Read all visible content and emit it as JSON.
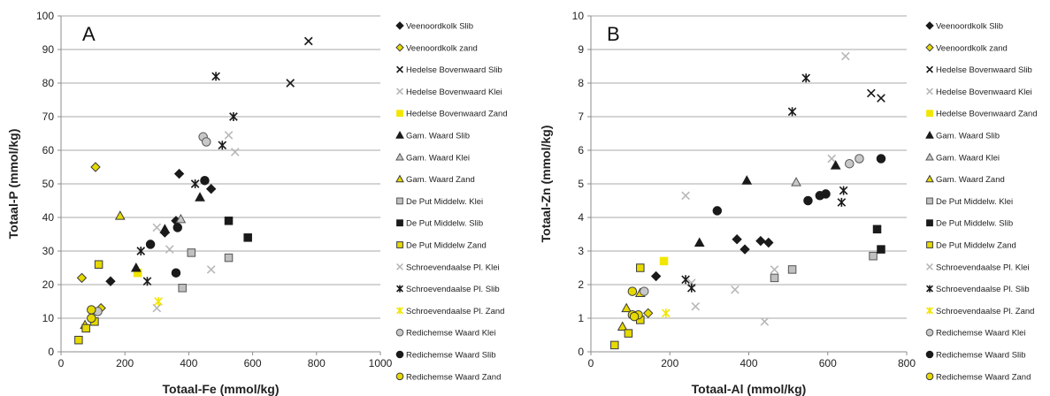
{
  "chart_data": [
    {
      "type": "scatter",
      "panel_letter": "A",
      "xlabel": "Totaal-Fe (mmol/kg)",
      "ylabel": "Totaal-P (mmol/kg)",
      "xlim": [
        0,
        1000
      ],
      "ylim": [
        0,
        100
      ],
      "xticks": [
        0,
        200,
        400,
        600,
        800,
        1000
      ],
      "yticks": [
        0,
        10,
        20,
        30,
        40,
        50,
        60,
        70,
        80,
        90,
        100
      ],
      "grid": "horizontal",
      "legend": "right",
      "series": [
        {
          "name": "Veenoordkolk Slib",
          "marker": "diamond",
          "fill": "#1a1a1a",
          "stroke": "#1a1a1a",
          "points": [
            [
              155,
              21
            ],
            [
              370,
              53
            ],
            [
              470,
              48.5
            ],
            [
              360,
              39
            ],
            [
              325,
              35.5
            ]
          ]
        },
        {
          "name": "Veenoordkolk zand",
          "marker": "diamond",
          "fill": "#e6d900",
          "stroke": "#3a3a3a",
          "points": [
            [
              108,
              55
            ],
            [
              65,
              22
            ],
            [
              125,
              13
            ]
          ]
        },
        {
          "name": "Hedelse Bovenwaard Slib",
          "marker": "x",
          "fill": "none",
          "stroke": "#1a1a1a",
          "points": [
            [
              775,
              92.5
            ],
            [
              718,
              80
            ]
          ]
        },
        {
          "name": "Hedelse Bovenwaard Klei",
          "marker": "x",
          "fill": "none",
          "stroke": "#b8b8b8",
          "points": [
            [
              300,
              37
            ],
            [
              525,
              64.5
            ],
            [
              545,
              59.5
            ],
            [
              470,
              24.5
            ],
            [
              340,
              30.5
            ]
          ]
        },
        {
          "name": "Hedelse Bovenwaard Zand",
          "marker": "square",
          "fill": "#f2e600",
          "stroke": "#f2e600",
          "points": [
            [
              240,
              23.5
            ]
          ]
        },
        {
          "name": "Gam. Waard Slib",
          "marker": "triangle",
          "fill": "#1a1a1a",
          "stroke": "#1a1a1a",
          "points": [
            [
              325,
              36.5
            ],
            [
              435,
              46
            ],
            [
              235,
              25
            ]
          ]
        },
        {
          "name": "Gam. Waard Klei",
          "marker": "triangle",
          "fill": "#c8c8c8",
          "stroke": "#555555",
          "points": [
            [
              375,
              39.5
            ]
          ]
        },
        {
          "name": "Gam. Waard Zand",
          "marker": "triangle",
          "fill": "#e6d900",
          "stroke": "#3a3a3a",
          "points": [
            [
              185,
              40.5
            ],
            [
              75,
              8
            ]
          ]
        },
        {
          "name": "De Put Middelw. Klei",
          "marker": "square",
          "fill": "#c0c0c0",
          "stroke": "#555555",
          "points": [
            [
              380,
              19
            ],
            [
              408,
              29.5
            ],
            [
              525,
              28
            ]
          ]
        },
        {
          "name": "De Put Middelw. Slib",
          "marker": "square",
          "fill": "#1a1a1a",
          "stroke": "#1a1a1a",
          "points": [
            [
              525,
              39
            ],
            [
              585,
              34
            ]
          ]
        },
        {
          "name": "De Put Middelw Zand",
          "marker": "square",
          "fill": "#e6d900",
          "stroke": "#3a3a3a",
          "points": [
            [
              55,
              3.5
            ],
            [
              78,
              7
            ],
            [
              105,
              9
            ],
            [
              118,
              26
            ]
          ]
        },
        {
          "name": "Schroevendaalse Pl. Klei",
          "marker": "x",
          "fill": "none",
          "stroke": "#b8b8b8",
          "points": [
            [
              300,
              13
            ]
          ]
        },
        {
          "name": "Schroevendaalse Pl. Slib",
          "marker": "star",
          "fill": "none",
          "stroke": "#1a1a1a",
          "points": [
            [
              485,
              82
            ],
            [
              540,
              70
            ],
            [
              505,
              61.5
            ],
            [
              420,
              50
            ],
            [
              270,
              21
            ],
            [
              250,
              30
            ]
          ]
        },
        {
          "name": "Schroevendaalse Pl. Zand",
          "marker": "star",
          "fill": "none",
          "stroke": "#f2e600",
          "points": [
            [
              305,
              15
            ]
          ]
        },
        {
          "name": "Redichemse Waard Klei",
          "marker": "circle",
          "fill": "#c8c8c8",
          "stroke": "#555555",
          "points": [
            [
              445,
              64
            ],
            [
              455,
              62.5
            ],
            [
              115,
              12
            ]
          ]
        },
        {
          "name": "Redichemse Waard Slib",
          "marker": "circle",
          "fill": "#1a1a1a",
          "stroke": "#1a1a1a",
          "points": [
            [
              450,
              51
            ],
            [
              365,
              37
            ],
            [
              280,
              32
            ],
            [
              360,
              23.5
            ]
          ]
        },
        {
          "name": "Redichemse  Waard  Zand",
          "marker": "circle",
          "fill": "#e6d900",
          "stroke": "#3a3a3a",
          "points": [
            [
              95,
              12.5
            ],
            [
              95,
              10
            ]
          ]
        }
      ]
    },
    {
      "type": "scatter",
      "panel_letter": "B",
      "xlabel": "Totaal-Al (mmol/kg)",
      "ylabel": "Totaal-Zn (mmol/kg)",
      "xlim": [
        0,
        800
      ],
      "ylim": [
        0,
        10
      ],
      "xticks": [
        0,
        200,
        400,
        600,
        800
      ],
      "yticks": [
        0,
        1,
        2,
        3,
        4,
        5,
        6,
        7,
        8,
        9,
        10
      ],
      "grid": "horizontal",
      "legend": "right",
      "series": [
        {
          "name": "Veenoordkolk Slib",
          "marker": "diamond",
          "fill": "#1a1a1a",
          "stroke": "#1a1a1a",
          "points": [
            [
              165,
              2.25
            ],
            [
              370,
              3.35
            ],
            [
              390,
              3.05
            ],
            [
              430,
              3.3
            ],
            [
              450,
              3.25
            ]
          ]
        },
        {
          "name": "Veenoordkolk zand",
          "marker": "diamond",
          "fill": "#e6d900",
          "stroke": "#3a3a3a",
          "points": [
            [
              145,
              1.15
            ]
          ]
        },
        {
          "name": "Hedelse Bovenwaard Slib",
          "marker": "x",
          "fill": "none",
          "stroke": "#1a1a1a",
          "points": [
            [
              710,
              7.7
            ],
            [
              735,
              7.55
            ]
          ]
        },
        {
          "name": "Hedelse Bovenwaard Klei",
          "marker": "x",
          "fill": "none",
          "stroke": "#b8b8b8",
          "points": [
            [
              645,
              8.8
            ],
            [
              240,
              4.65
            ],
            [
              365,
              1.85
            ],
            [
              440,
              0.9
            ],
            [
              610,
              5.75
            ],
            [
              265,
              1.35
            ],
            [
              255,
              2.05
            ],
            [
              465,
              2.45
            ]
          ]
        },
        {
          "name": "Hedelse Bovenwaard Zand",
          "marker": "square",
          "fill": "#f2e600",
          "stroke": "#f2e600",
          "points": [
            [
              185,
              2.7
            ]
          ]
        },
        {
          "name": "Gam. Waard Slib",
          "marker": "triangle",
          "fill": "#1a1a1a",
          "stroke": "#1a1a1a",
          "points": [
            [
              395,
              5.1
            ],
            [
              275,
              3.25
            ],
            [
              620,
              5.55
            ]
          ]
        },
        {
          "name": "Gam. Waard Klei",
          "marker": "triangle",
          "fill": "#c8c8c8",
          "stroke": "#555555",
          "points": [
            [
              520,
              5.05
            ]
          ]
        },
        {
          "name": "Gam. Waard Zand",
          "marker": "triangle",
          "fill": "#e6d900",
          "stroke": "#3a3a3a",
          "points": [
            [
              90,
              1.3
            ],
            [
              125,
              1.75
            ],
            [
              80,
              0.75
            ]
          ]
        },
        {
          "name": "De Put Middelw. Klei",
          "marker": "square",
          "fill": "#c0c0c0",
          "stroke": "#555555",
          "points": [
            [
              465,
              2.2
            ],
            [
              510,
              2.45
            ],
            [
              715,
              2.85
            ]
          ]
        },
        {
          "name": "De Put Middelw. Slib",
          "marker": "square",
          "fill": "#1a1a1a",
          "stroke": "#1a1a1a",
          "points": [
            [
              725,
              3.65
            ],
            [
              735,
              3.05
            ]
          ]
        },
        {
          "name": "De Put Middelw Zand",
          "marker": "square",
          "fill": "#e6d900",
          "stroke": "#3a3a3a",
          "points": [
            [
              125,
              2.5
            ],
            [
              60,
              0.2
            ],
            [
              95,
              0.55
            ],
            [
              125,
              0.95
            ]
          ]
        },
        {
          "name": "Schroevendaalse Pl. Klei",
          "marker": "x",
          "fill": "none",
          "stroke": "#b8b8b8",
          "points": []
        },
        {
          "name": "Schroevendaalse Pl. Slib",
          "marker": "star",
          "fill": "none",
          "stroke": "#1a1a1a",
          "points": [
            [
              545,
              8.15
            ],
            [
              510,
              7.15
            ],
            [
              640,
              4.8
            ],
            [
              635,
              4.45
            ],
            [
              240,
              2.15
            ],
            [
              255,
              1.9
            ]
          ]
        },
        {
          "name": "Schroevendaalse Pl. Zand",
          "marker": "star",
          "fill": "none",
          "stroke": "#f2e600",
          "points": [
            [
              190,
              1.15
            ]
          ]
        },
        {
          "name": "Redichemse Waard Klei",
          "marker": "circle",
          "fill": "#c8c8c8",
          "stroke": "#555555",
          "points": [
            [
              680,
              5.75
            ],
            [
              655,
              5.6
            ],
            [
              135,
              1.8
            ]
          ]
        },
        {
          "name": "Redichemse Waard Slib",
          "marker": "circle",
          "fill": "#1a1a1a",
          "stroke": "#1a1a1a",
          "points": [
            [
              735,
              5.75
            ],
            [
              595,
              4.7
            ],
            [
              580,
              4.65
            ],
            [
              550,
              4.5
            ],
            [
              320,
              4.2
            ]
          ]
        },
        {
          "name": "Redichemse  Waard  Zand",
          "marker": "circle",
          "fill": "#e6d900",
          "stroke": "#3a3a3a",
          "points": [
            [
              105,
              1.8
            ],
            [
              105,
              1.1
            ],
            [
              120,
              1.1
            ],
            [
              110,
              1.05
            ]
          ]
        }
      ]
    }
  ]
}
